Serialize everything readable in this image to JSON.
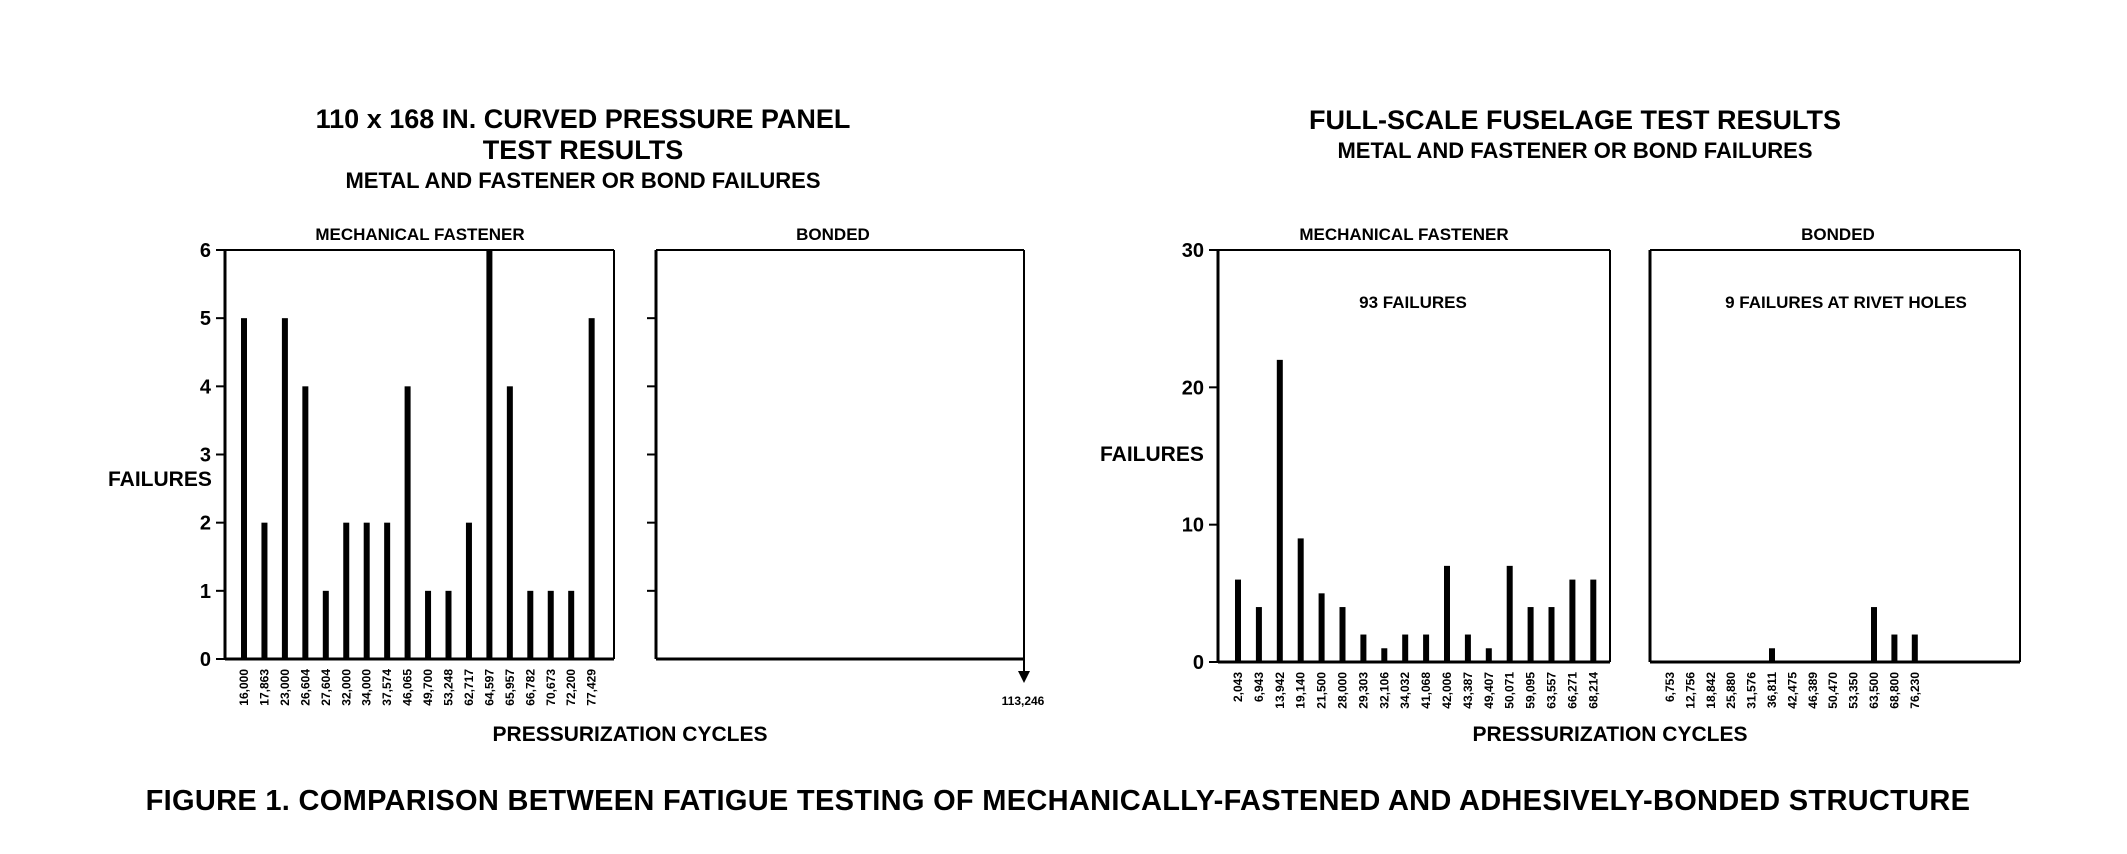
{
  "left_figure": {
    "title_line1": "110 x 168 IN. CURVED PRESSURE PANEL",
    "title_line2": "TEST RESULTS",
    "subtitle": "METAL AND FASTENER OR BOND FAILURES",
    "ylabel": "FAILURES",
    "xlabel": "PRESSURIZATION CYCLES"
  },
  "right_figure": {
    "title_line1": "FULL-SCALE FUSELAGE TEST RESULTS",
    "subtitle": "METAL AND FASTENER OR BOND FAILURES",
    "ylabel": "FAILURES",
    "xlabel": "PRESSURIZATION CYCLES"
  },
  "caption": "FIGURE 1.  COMPARISON BETWEEN FATIGUE TESTING OF MECHANICALLY-FASTENED AND ADHESIVELY-BONDED STRUCTURE",
  "chart_data": [
    {
      "type": "bar",
      "title": "MECHANICAL FASTENER",
      "ylabel": "FAILURES",
      "xlabel": "PRESSURIZATION CYCLES",
      "ylim": [
        0,
        6
      ],
      "yticks": [
        0,
        1,
        2,
        3,
        4,
        5,
        6
      ],
      "categories": [
        "16,000",
        "17,863",
        "23,000",
        "26,604",
        "27,604",
        "32,000",
        "34,000",
        "37,574",
        "46,065",
        "49,700",
        "53,248",
        "62,717",
        "64,597",
        "65,957",
        "66,782",
        "70,673",
        "72,200",
        "77,429"
      ],
      "values": [
        5,
        2,
        5,
        4,
        1,
        2,
        2,
        2,
        4,
        1,
        1,
        2,
        6,
        4,
        1,
        1,
        1,
        5
      ]
    },
    {
      "type": "bar",
      "title": "BONDED",
      "ylim": [
        0,
        6
      ],
      "categories": [],
      "values": [],
      "annotation": "113,246"
    },
    {
      "type": "bar",
      "title": "MECHANICAL FASTENER",
      "annotation": "93 FAILURES",
      "ylabel": "FAILURES",
      "xlabel": "PRESSURIZATION CYCLES",
      "ylim": [
        0,
        30
      ],
      "yticks": [
        0,
        10,
        20,
        30
      ],
      "categories": [
        "2,043",
        "6,943",
        "13,942",
        "19,140",
        "21,500",
        "28,000",
        "29,303",
        "32,106",
        "34,032",
        "41,068",
        "42,006",
        "43,387",
        "49,407",
        "50,071",
        "59,095",
        "63,557",
        "66,271",
        "68,214"
      ],
      "values": [
        6,
        4,
        22,
        9,
        5,
        4,
        2,
        1,
        2,
        2,
        7,
        2,
        1,
        7,
        4,
        4,
        6,
        6
      ]
    },
    {
      "type": "bar",
      "title": "BONDED",
      "annotation": "9 FAILURES AT RIVET HOLES",
      "ylim": [
        0,
        30
      ],
      "categories": [
        "6,753",
        "12,756",
        "18,842",
        "25,880",
        "31,576",
        "36,811",
        "42,475",
        "46,389",
        "50,470",
        "53,350",
        "63,500",
        "68,800",
        "76,230"
      ],
      "values": [
        0,
        0,
        0,
        0,
        0,
        1,
        0,
        0,
        0,
        0,
        4,
        2,
        2
      ]
    }
  ]
}
